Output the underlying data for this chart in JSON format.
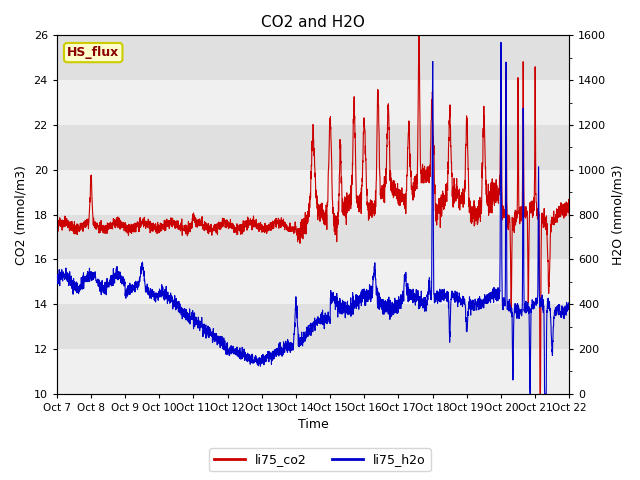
{
  "title": "CO2 and H2O",
  "xlabel": "Time",
  "ylabel_left": "CO2 (mmol/m3)",
  "ylabel_right": "H2O (mmol/m3)",
  "xlim": [
    0,
    15
  ],
  "ylim_left": [
    10,
    26
  ],
  "ylim_right": [
    0,
    1600
  ],
  "yticks_left": [
    10,
    12,
    14,
    16,
    18,
    20,
    22,
    24,
    26
  ],
  "yticks_right": [
    0,
    200,
    400,
    600,
    800,
    1000,
    1200,
    1400,
    1600
  ],
  "xtick_labels": [
    "Oct 7",
    "Oct 8",
    "Oct 9",
    "Oct 10",
    "Oct 11",
    "Oct 12",
    "Oct 13",
    "Oct 14",
    "Oct 15",
    "Oct 16",
    "Oct 17",
    "Oct 18",
    "Oct 19",
    "Oct 20",
    "Oct 21",
    "Oct 22"
  ],
  "color_co2": "#CC0000",
  "color_h2o": "#0000CC",
  "fig_bg": "#FFFFFF",
  "plot_bg_light": "#F0F0F0",
  "plot_bg_dark": "#E0E0E0",
  "label_co2": "li75_co2",
  "label_h2o": "li75_h2o",
  "annotation_text": "HS_flux",
  "annotation_color": "#8B0000",
  "annotation_bg": "#FFFFCC",
  "annotation_edge": "#CCCC00",
  "title_fontsize": 11,
  "axis_fontsize": 9,
  "tick_fontsize": 8,
  "legend_fontsize": 9
}
